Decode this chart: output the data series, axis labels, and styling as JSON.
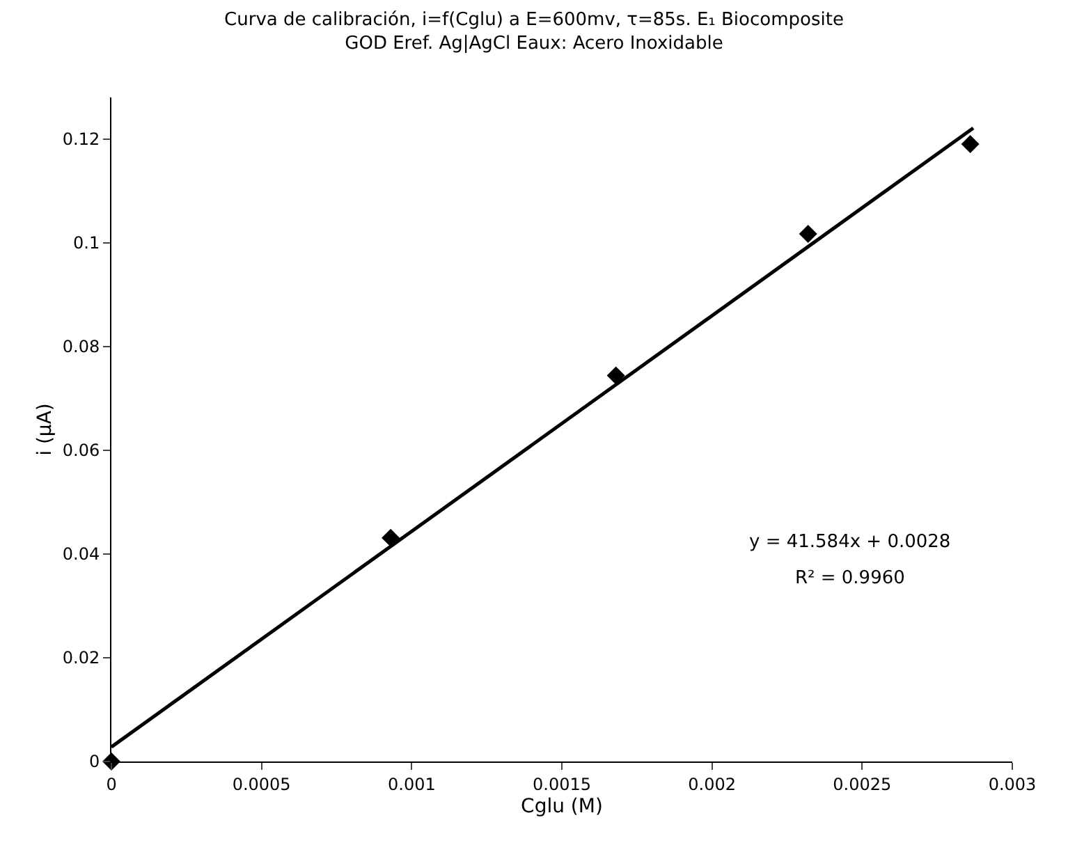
{
  "chart_data": {
    "type": "scatter",
    "title": "Curva de calibración, i=f(Cglu) a E=600mv, τ=85s. E₁ Biocomposite",
    "subtitle": "GOD Eref. Ag|AgCl Eaux: Acero Inoxidable",
    "xlabel": "Cglu (M)",
    "ylabel": "i (μA)",
    "series": [
      {
        "color": "#000000",
        "marker": "diamond",
        "x": [
          0,
          0.00093,
          0.00168,
          0.00232,
          0.00286
        ],
        "values": [
          0,
          0.0431,
          0.0744,
          0.1017,
          0.119
        ]
      },
      {
        "type": "line",
        "color": "#000000",
        "line_style": "solid",
        "x": [
          0,
          0.00287
        ],
        "values": [
          0.0028,
          0.1221
        ]
      }
    ],
    "annotations": [
      "y = 41.584x + 0.0028",
      "R² = 0.9960"
    ],
    "xlim": [
      0,
      0.003
    ],
    "xticks": [
      0,
      0.0005,
      0.001,
      0.0015,
      0.002,
      0.0025,
      0.003
    ],
    "ylim": [
      0,
      0.128
    ],
    "yticks": [
      0,
      0.02,
      0.04,
      0.06,
      0.08,
      0.1,
      0.12
    ]
  }
}
